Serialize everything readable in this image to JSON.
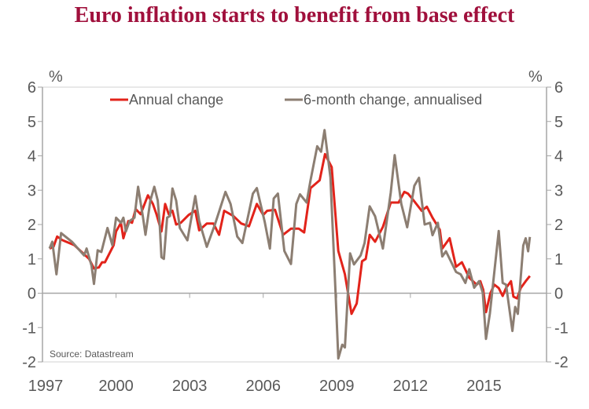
{
  "chart_data": {
    "type": "line",
    "title": "Euro inflation starts to benefit from base effect",
    "ylabel_left": "%",
    "ylabel_right": "%",
    "ylim": [
      -2,
      6
    ],
    "yticks": [
      "6",
      "5",
      "4",
      "3",
      "2",
      "1",
      "0",
      "-1",
      "-2"
    ],
    "ytick_values": [
      6,
      5,
      4,
      3,
      2,
      1,
      0,
      -1,
      -2
    ],
    "xlim": [
      1997,
      2017.55
    ],
    "xticks": [
      "1997",
      "2000",
      "2003",
      "2006",
      "2009",
      "2012",
      "2015"
    ],
    "xtick_values": [
      1997,
      2000,
      2003,
      2006,
      2009,
      2012,
      2015
    ],
    "source": "Source: Datastream",
    "legend_position": "top",
    "colors": {
      "annual": "#e2231a",
      "six_month": "#8c7e72"
    },
    "series": [
      {
        "name": "Annual change",
        "x": [
          1997.29,
          1997.45,
          1997.6,
          1997.8,
          1998.3,
          1998.6,
          1998.9,
          1999.1,
          1999.3,
          1999.43,
          1999.55,
          1999.9,
          2000.0,
          2000.2,
          2000.3,
          2000.5,
          2000.65,
          2000.8,
          2001.0,
          2001.3,
          2001.5,
          2001.65,
          2001.85,
          2002.0,
          2002.15,
          2002.3,
          2002.45,
          2002.64,
          2002.96,
          2003.23,
          2003.39,
          2003.7,
          2003.97,
          2004.2,
          2004.41,
          2004.78,
          2005.1,
          2005.42,
          2005.74,
          2006.0,
          2006.16,
          2006.48,
          2006.81,
          2007.13,
          2007.45,
          2007.67,
          2007.93,
          2008.3,
          2008.52,
          2008.79,
          2009.06,
          2009.33,
          2009.6,
          2009.81,
          2010.03,
          2010.18,
          2010.34,
          2010.56,
          2010.88,
          2011.2,
          2011.52,
          2011.75,
          2011.9,
          2012.1,
          2012.46,
          2012.67,
          2012.9,
          2013.2,
          2013.3,
          2013.6,
          2013.86,
          2014.1,
          2014.4,
          2014.7,
          2014.85,
          2014.97,
          2015.08,
          2015.26,
          2015.42,
          2015.6,
          2015.76,
          2015.9,
          2016.1,
          2016.2,
          2016.35,
          2016.5,
          2016.7,
          2016.87
        ],
        "values": [
          1.3,
          1.35,
          1.65,
          1.55,
          1.4,
          1.2,
          1.0,
          0.72,
          0.75,
          0.9,
          0.9,
          1.4,
          1.8,
          2.05,
          1.6,
          2.1,
          2.05,
          2.45,
          2.3,
          2.85,
          2.6,
          2.3,
          1.8,
          2.6,
          2.3,
          2.4,
          2.0,
          2.05,
          2.28,
          2.4,
          1.83,
          2.03,
          2.03,
          1.7,
          2.4,
          2.25,
          2.03,
          1.95,
          2.6,
          2.28,
          2.4,
          2.43,
          1.7,
          1.88,
          1.88,
          1.77,
          3.06,
          3.29,
          4.05,
          3.67,
          1.23,
          0.55,
          -0.6,
          -0.3,
          0.93,
          1.0,
          1.7,
          1.5,
          1.93,
          2.64,
          2.64,
          2.95,
          2.9,
          2.73,
          2.4,
          2.52,
          2.2,
          1.85,
          1.3,
          1.6,
          0.77,
          0.9,
          0.45,
          0.25,
          0.35,
          0.1,
          -0.55,
          0.0,
          0.25,
          0.15,
          -0.08,
          0.15,
          0.35,
          -0.1,
          -0.15,
          0.15,
          0.35,
          0.5
        ]
      },
      {
        "name": "6-month change, annualised",
        "x": [
          1997.29,
          1997.4,
          1997.57,
          1997.76,
          1998.2,
          1998.7,
          1998.8,
          1999.0,
          1999.1,
          1999.25,
          1999.4,
          1999.65,
          1999.85,
          2000.0,
          2000.2,
          2000.3,
          2000.4,
          2000.55,
          2000.75,
          2000.9,
          2001.1,
          2001.2,
          2001.4,
          2001.56,
          2001.7,
          2001.78,
          2001.85,
          2001.95,
          2002.08,
          2002.2,
          2002.3,
          2002.45,
          2002.6,
          2002.91,
          2003.23,
          2003.39,
          2003.7,
          2004.03,
          2004.46,
          2004.67,
          2004.94,
          2005.15,
          2005.58,
          2005.74,
          2006.06,
          2006.27,
          2006.43,
          2006.6,
          2006.86,
          2007.13,
          2007.35,
          2007.5,
          2007.77,
          2007.93,
          2008.2,
          2008.36,
          2008.5,
          2008.74,
          2008.95,
          2009.06,
          2009.22,
          2009.33,
          2009.54,
          2009.7,
          2009.97,
          2010.13,
          2010.34,
          2010.56,
          2010.88,
          2011.2,
          2011.36,
          2011.63,
          2011.87,
          2012.16,
          2012.35,
          2012.58,
          2012.8,
          2012.9,
          2013.12,
          2013.3,
          2013.45,
          2013.86,
          2014.05,
          2014.24,
          2014.4,
          2014.6,
          2014.8,
          2014.95,
          2015.08,
          2015.24,
          2015.6,
          2015.76,
          2015.9,
          2016.16,
          2016.27,
          2016.38,
          2016.6,
          2016.7,
          2016.8,
          2016.87
        ],
        "values": [
          1.3,
          1.5,
          0.55,
          1.75,
          1.5,
          1.1,
          1.3,
          0.8,
          0.27,
          1.25,
          1.2,
          1.9,
          1.4,
          2.2,
          2.05,
          2.2,
          1.8,
          2.1,
          2.2,
          3.1,
          2.2,
          1.7,
          2.7,
          3.1,
          2.7,
          2.0,
          1.05,
          1.0,
          2.2,
          2.25,
          3.05,
          2.7,
          1.9,
          1.54,
          2.83,
          2.1,
          1.35,
          2.0,
          2.95,
          2.6,
          1.65,
          1.46,
          2.9,
          3.06,
          2.08,
          1.3,
          2.76,
          2.9,
          1.23,
          0.85,
          2.6,
          2.88,
          2.64,
          3.29,
          4.28,
          4.12,
          4.75,
          3.37,
          0.02,
          -1.9,
          -1.5,
          -1.58,
          1.16,
          0.84,
          1.1,
          1.46,
          2.53,
          2.24,
          1.3,
          2.93,
          4.02,
          2.6,
          1.92,
          3.13,
          3.36,
          2.0,
          2.05,
          1.69,
          2.05,
          1.07,
          1.22,
          0.62,
          0.55,
          0.3,
          0.7,
          0.16,
          0.35,
          0.02,
          -1.33,
          -0.6,
          1.81,
          0.3,
          0.25,
          -1.1,
          -0.4,
          -0.6,
          1.39,
          1.6,
          1.22,
          1.64
        ]
      }
    ]
  }
}
